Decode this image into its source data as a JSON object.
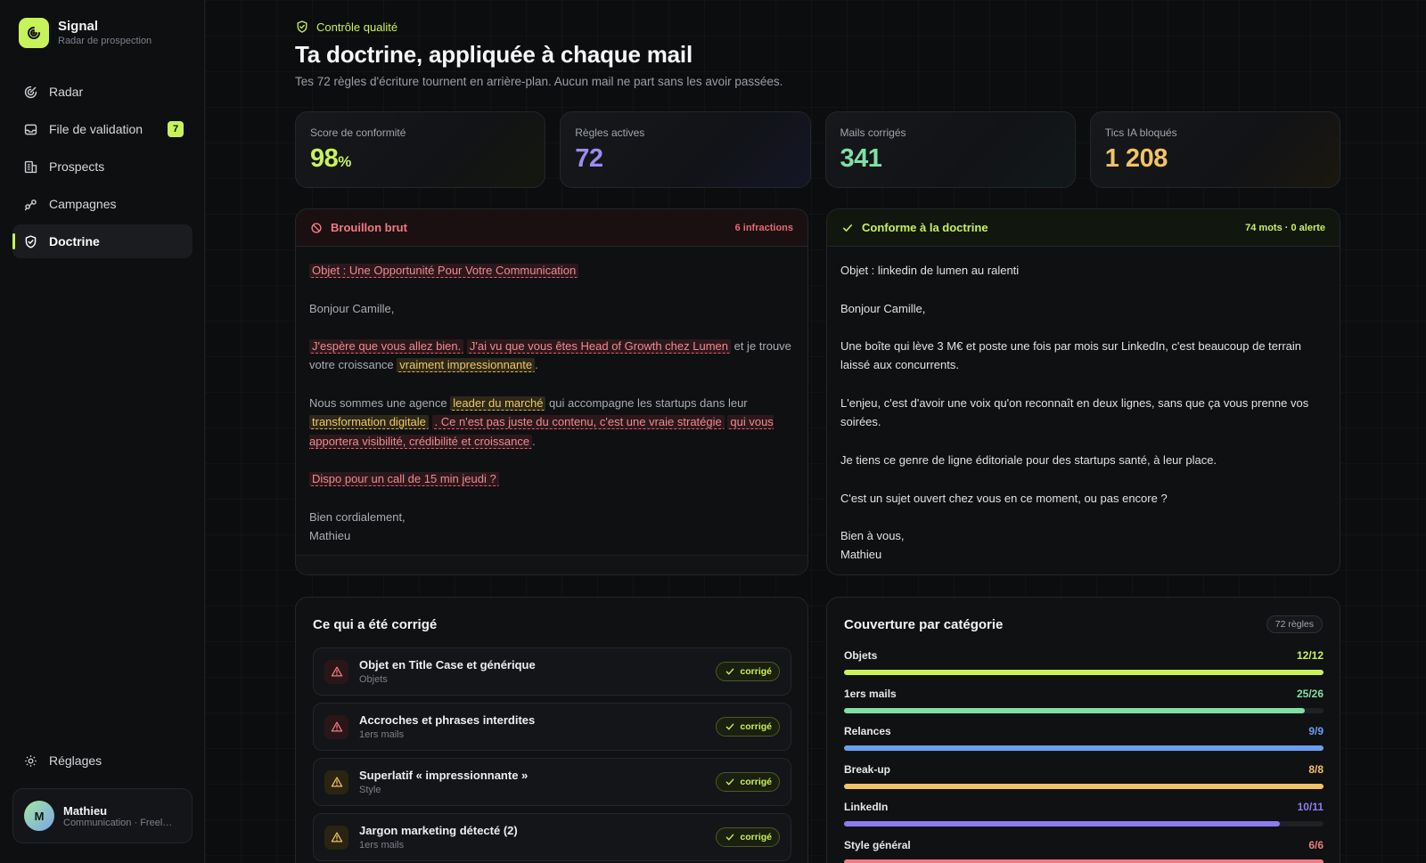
{
  "brand": {
    "name": "Signal",
    "subtitle": "Radar de prospection"
  },
  "nav": {
    "items": [
      {
        "label": "Radar",
        "icon": "radar-icon"
      },
      {
        "label": "File de validation",
        "icon": "inbox-icon",
        "badge": "7"
      },
      {
        "label": "Prospects",
        "icon": "building-icon"
      },
      {
        "label": "Campagnes",
        "icon": "campaign-icon"
      },
      {
        "label": "Doctrine",
        "icon": "shield-check-icon",
        "active": true
      }
    ],
    "settings_label": "Réglages"
  },
  "user": {
    "initial": "M",
    "name": "Mathieu",
    "role": "Communication · Freela..."
  },
  "header": {
    "kicker": "Contrôle qualité",
    "title": "Ta doctrine, appliquée à chaque mail",
    "subtitle": "Tes 72 règles d'écriture tournent en arrière-plan. Aucun mail ne part sans les avoir passées."
  },
  "stats": [
    {
      "label": "Score de conformité",
      "value": "98",
      "unit": "%",
      "color": "#c7f25a"
    },
    {
      "label": "Règles actives",
      "value": "72",
      "unit": "",
      "color": "#9b8cf2"
    },
    {
      "label": "Mails corrigés",
      "value": "341",
      "unit": "",
      "color": "#7fe0a6"
    },
    {
      "label": "Tics IA bloqués",
      "value": "1 208",
      "unit": "",
      "color": "#f2c266"
    }
  ],
  "draft": {
    "title": "Brouillon brut",
    "meta": "6 infractions",
    "subject": "Objet : Une Opportunité Pour Votre Communication",
    "greeting": "Bonjour Camille,",
    "p1_a": "J'espère que vous allez bien.",
    "p1_b": "J'ai vu que vous êtes Head of Growth chez Lumen",
    "p1_c": " et je trouve votre croissance ",
    "p1_d": "vraiment impressionnante",
    "p1_e": ".",
    "p2_a": "Nous sommes une agence ",
    "p2_b": "leader du marché",
    "p2_c": " qui accompagne les startups dans leur ",
    "p2_d": "transformation digitale",
    "p2_e": ". Ce n'est pas juste du contenu, c'est une vraie stratégie",
    "p2_f": "qui vous apportera visibilité, crédibilité et croissance",
    "p2_g": ".",
    "cta": "Dispo pour un call de 15 min jeudi ?",
    "closing": "Bien cordialement,",
    "signature": "Mathieu"
  },
  "final": {
    "title": "Conforme à la doctrine",
    "meta": "74 mots · 0 alerte",
    "subject": "Objet : linkedin de lumen au ralenti",
    "greeting": "Bonjour Camille,",
    "p1": "Une boîte qui lève 3 M€ et poste une fois par mois sur LinkedIn, c'est beaucoup de terrain laissé aux concurrents.",
    "p2": "L'enjeu, c'est d'avoir une voix qu'on reconnaît en deux lignes, sans que ça vous prenne vos soirées.",
    "p3": "Je tiens ce genre de ligne éditoriale pour des startups santé, à leur place.",
    "p4": "C'est un sujet ouvert chez vous en ce moment, ou pas encore ?",
    "closing": "Bien à vous,",
    "signature": "Mathieu"
  },
  "corrections": {
    "title": "Ce qui a été corrigé",
    "badge_label": "corrigé",
    "items": [
      {
        "title": "Objet en Title Case et générique",
        "category": "Objets",
        "severity": "red"
      },
      {
        "title": "Accroches et phrases interdites",
        "category": "1ers mails",
        "severity": "red"
      },
      {
        "title": "Superlatif « impressionnante »",
        "category": "Style",
        "severity": "yellow"
      },
      {
        "title": "Jargon marketing détecté (2)",
        "category": "1ers mails",
        "severity": "yellow"
      }
    ]
  },
  "coverage": {
    "title": "Couverture par catégorie",
    "pill": "72 règles",
    "items": [
      {
        "label": "Objets",
        "count": "12/12",
        "done": 12,
        "total": 12,
        "color": "#c7f25a"
      },
      {
        "label": "1ers mails",
        "count": "25/26",
        "done": 25,
        "total": 26,
        "color": "#7fe0a6"
      },
      {
        "label": "Relances",
        "count": "9/9",
        "done": 9,
        "total": 9,
        "color": "#6aa0f0"
      },
      {
        "label": "Break-up",
        "count": "8/8",
        "done": 8,
        "total": 8,
        "color": "#f2c266"
      },
      {
        "label": "LinkedIn",
        "count": "10/11",
        "done": 10,
        "total": 11,
        "color": "#8d7cf0"
      },
      {
        "label": "Style général",
        "count": "6/6",
        "done": 6,
        "total": 6,
        "color": "#f07a82"
      }
    ]
  }
}
